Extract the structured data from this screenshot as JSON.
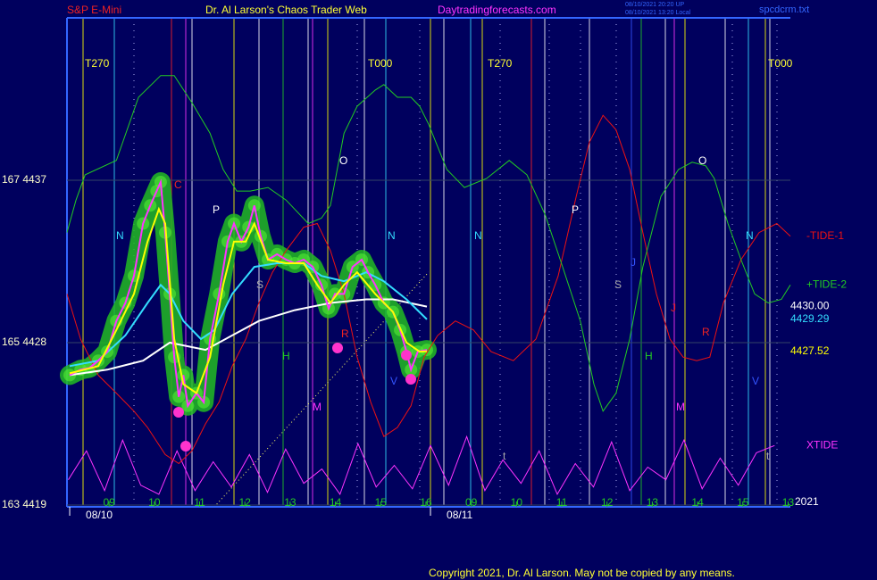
{
  "chart_data": {
    "type": "line",
    "title": "S&P E-Mini",
    "subtitle": "Dr. Al Larson's Chaos Trader Web",
    "site": "Daytradingforecasts.com",
    "stamp": [
      "08/10/2021 20:20 UP",
      "08/10/2021 13:20 Local"
    ],
    "file": "spcdcrm.txt",
    "copyright": "Copyright 2021, Dr. Al Larson. May not be copied by any means.",
    "year": "2021",
    "grid": true,
    "ylim": [
      4419,
      4446
    ],
    "yticks": [
      {
        "value": 4419,
        "label": "163  4419"
      },
      {
        "value": 4428,
        "label": "165  4428"
      },
      {
        "value": 4437,
        "label": "167  4437"
      }
    ],
    "xlim": [
      -0.93,
      15.05
    ],
    "xticks": [
      {
        "value": 0,
        "label": "09"
      },
      {
        "value": 1,
        "label": "10"
      },
      {
        "value": 2,
        "label": "11"
      },
      {
        "value": 3,
        "label": "12"
      },
      {
        "value": 4,
        "label": "13"
      },
      {
        "value": 5,
        "label": "14"
      },
      {
        "value": 6,
        "label": "15"
      },
      {
        "value": 7,
        "label": "16"
      },
      {
        "value": 8,
        "label": "09"
      },
      {
        "value": 9,
        "label": "10"
      },
      {
        "value": 10,
        "label": "11"
      },
      {
        "value": 11,
        "label": "12"
      },
      {
        "value": 12,
        "label": "13"
      },
      {
        "value": 13,
        "label": "14"
      },
      {
        "value": 14,
        "label": "15"
      },
      {
        "value": 15,
        "label": "13"
      }
    ],
    "date_ticks": [
      {
        "value": -0.87,
        "label": "08/10"
      },
      {
        "value": 7.1,
        "label": "08/11"
      }
    ],
    "annotations": [
      "T270",
      "T000",
      "T270",
      "T000",
      "N",
      "C",
      "P",
      "S",
      "H",
      "M",
      "O",
      "R",
      "N",
      "V",
      "N",
      "P",
      "S",
      "J",
      "J",
      "H",
      "M",
      "O",
      "R",
      "N",
      "V",
      "t",
      "t"
    ],
    "series": [
      {
        "color": "#ff33ff",
        "x": [
          -0.87,
          -0.63,
          -0.43,
          -0.24,
          -0.04,
          0.16,
          0.36,
          0.55,
          0.75,
          0.91,
          1.05,
          1.14,
          1.24,
          1.34,
          1.44,
          1.54,
          1.64,
          1.74,
          1.93,
          2.09,
          2.23,
          2.43,
          2.62,
          2.76,
          2.92,
          3.08,
          3.21,
          3.35,
          3.51,
          3.71,
          3.91,
          4.1,
          4.3,
          4.5,
          4.69,
          4.85,
          4.99,
          5.19,
          5.38,
          5.58,
          5.72,
          5.88,
          6.07,
          6.27,
          6.43,
          6.57,
          6.67,
          6.82,
          7.02
        ],
        "values": [
          4426.2,
          4426.5,
          4426.6,
          4427.0,
          4427.5,
          4429.2,
          4430.2,
          4431.7,
          4434.6,
          4435.6,
          4436.4,
          4436.9,
          4434.1,
          4430.7,
          4427.2,
          4425.0,
          4426.2,
          4424.5,
          4425.2,
          4424.7,
          4428.2,
          4430.7,
          4433.6,
          4434.6,
          4433.6,
          4434.4,
          4435.6,
          4433.9,
          4432.6,
          4432.9,
          4432.6,
          4432.4,
          4432.6,
          4432.2,
          4431.2,
          4429.9,
          4430.7,
          4430.7,
          4432.2,
          4432.6,
          4431.9,
          4431.2,
          4430.2,
          4429.7,
          4428.7,
          4427.5,
          4426.5,
          4427.5,
          4427.6
        ]
      },
      {
        "color": "#ffff00",
        "end_label": "4427.52",
        "x": [
          -0.87,
          -0.24,
          0.16,
          0.55,
          0.85,
          1.1,
          1.24,
          1.44,
          1.64,
          1.93,
          2.23,
          2.52,
          2.76,
          3.02,
          3.21,
          3.51,
          3.91,
          4.3,
          4.6,
          4.89,
          5.19,
          5.48,
          5.88,
          6.27,
          6.57,
          6.86,
          7.02
        ],
        "values": [
          4426.3,
          4426.7,
          4428.7,
          4430.7,
          4433.6,
          4435.4,
          4434.6,
          4428.2,
          4425.7,
          4425.2,
          4427.2,
          4431.2,
          4433.6,
          4433.6,
          4434.6,
          4432.6,
          4432.4,
          4432.4,
          4431.2,
          4430.2,
          4431.2,
          4431.9,
          4430.7,
          4429.7,
          4428.0,
          4427.5,
          4427.52
        ]
      },
      {
        "color": "#33ddff",
        "end_label": "4429.29",
        "x": [
          -0.87,
          -0.24,
          0.36,
          0.85,
          1.14,
          1.34,
          1.64,
          2.03,
          2.33,
          2.72,
          3.21,
          3.71,
          4.3,
          4.69,
          5.19,
          5.68,
          6.07,
          6.57,
          7.02
        ],
        "values": [
          4426.7,
          4427.0,
          4428.4,
          4430.2,
          4431.2,
          4430.7,
          4429.2,
          4428.2,
          4428.7,
          4430.7,
          4432.2,
          4432.4,
          4432.4,
          4431.7,
          4431.4,
          4431.9,
          4431.4,
          4430.4,
          4429.29
        ]
      },
      {
        "color": "#ffffff",
        "end_label": "4430.00",
        "x": [
          -0.87,
          -0.04,
          0.75,
          1.34,
          2.13,
          2.72,
          3.31,
          4.1,
          4.89,
          5.68,
          6.27,
          7.02
        ],
        "values": [
          4426.2,
          4426.5,
          4427.0,
          4428.0,
          4427.6,
          4428.4,
          4429.2,
          4429.8,
          4430.2,
          4430.4,
          4430.4,
          4430.0
        ]
      },
      {
        "name": "+TIDE-2",
        "color": "#22cc22",
        "x": [
          -0.93,
          -0.73,
          -0.53,
          0.16,
          0.65,
          1.14,
          1.44,
          1.83,
          2.23,
          2.52,
          2.82,
          3.12,
          3.51,
          3.91,
          4.4,
          4.69,
          4.89,
          5.19,
          5.48,
          5.88,
          6.07,
          6.37,
          6.67,
          6.86,
          7.06,
          7.46,
          7.85,
          8.34,
          8.84,
          9.23,
          9.63,
          10.02,
          10.41,
          10.71,
          10.91,
          11.2,
          11.5,
          11.79,
          12.19,
          12.58,
          12.88,
          13.18,
          13.37,
          13.67,
          13.96,
          14.26,
          14.56,
          14.85,
          15.05
        ],
        "values": [
          4434.1,
          4435.9,
          4437.3,
          4438.1,
          4441.6,
          4442.8,
          4442.8,
          4441.3,
          4439.6,
          4437.6,
          4436.4,
          4436.4,
          4436.6,
          4435.9,
          4434.6,
          4434.9,
          4435.6,
          4439.6,
          4441.1,
          4442.0,
          4442.3,
          4441.6,
          4441.6,
          4441.1,
          4440.1,
          4437.6,
          4436.6,
          4437.1,
          4438.1,
          4437.3,
          4435.1,
          4432.2,
          4429.2,
          4425.7,
          4424.2,
          4425.2,
          4428.2,
          4432.2,
          4436.1,
          4437.6,
          4438.0,
          4437.8,
          4437.1,
          4434.6,
          4432.6,
          4430.7,
          4430.2,
          4430.4,
          4431.2
        ]
      },
      {
        "name": "-TIDE-1",
        "color": "#ee1111",
        "x": [
          -0.93,
          -0.63,
          -0.24,
          0.16,
          0.55,
          0.85,
          1.24,
          1.54,
          1.83,
          2.13,
          2.43,
          2.72,
          3.02,
          3.31,
          3.61,
          3.91,
          4.3,
          4.6,
          4.89,
          5.19,
          5.48,
          5.78,
          6.07,
          6.37,
          6.67,
          6.96,
          7.26,
          7.65,
          8.05,
          8.44,
          8.93,
          9.43,
          9.92,
          10.32,
          10.61,
          10.91,
          11.2,
          11.5,
          11.79,
          12.09,
          12.39,
          12.68,
          12.98,
          13.27,
          13.57,
          13.96,
          14.36,
          14.75,
          15.05
        ],
        "values": [
          4430.7,
          4428.2,
          4426.2,
          4425.2,
          4424.2,
          4423.3,
          4421.8,
          4421.3,
          4422.0,
          4423.5,
          4424.7,
          4426.7,
          4428.2,
          4430.2,
          4431.9,
          4433.1,
          4434.4,
          4434.6,
          4433.1,
          4430.7,
          4427.2,
          4424.7,
          4422.8,
          4423.3,
          4424.5,
          4427.2,
          4428.4,
          4429.2,
          4428.7,
          4427.5,
          4427.0,
          4428.2,
          4431.7,
          4436.1,
          4439.1,
          4440.6,
          4439.8,
          4437.6,
          4434.1,
          4430.7,
          4428.2,
          4427.2,
          4427.0,
          4427.2,
          4430.2,
          4432.6,
          4434.1,
          4434.6,
          4433.9
        ]
      },
      {
        "name": "XTIDE",
        "color": "#ff33ff",
        "x": [
          -0.9,
          -0.5,
          -0.1,
          0.3,
          0.7,
          1.1,
          1.5,
          1.9,
          2.3,
          2.7,
          3.1,
          3.5,
          3.9,
          4.3,
          4.7,
          5.1,
          5.5,
          5.9,
          6.3,
          6.7,
          7.1,
          7.5,
          7.9,
          8.3,
          8.7,
          9.1,
          9.5,
          9.9,
          10.3,
          10.7,
          11.1,
          11.5,
          11.9,
          12.3,
          12.7,
          13.1,
          13.5,
          13.9,
          14.3,
          14.7
        ],
        "values": [
          4420.4,
          4422.0,
          4419.8,
          4422.6,
          4420.1,
          4419.6,
          4422.0,
          4419.8,
          4421.4,
          4420.0,
          4421.8,
          4419.7,
          4422.1,
          4420.2,
          4421.0,
          4419.6,
          4422.4,
          4420.0,
          4421.2,
          4419.9,
          4422.3,
          4420.1,
          4422.8,
          4419.8,
          4421.5,
          4420.2,
          4422.0,
          4419.6,
          4421.3,
          4420.0,
          4422.5,
          4419.8,
          4421.1,
          4420.4,
          4422.6,
          4419.9,
          4421.6,
          4420.1,
          4421.9,
          4422.3
        ]
      }
    ]
  }
}
